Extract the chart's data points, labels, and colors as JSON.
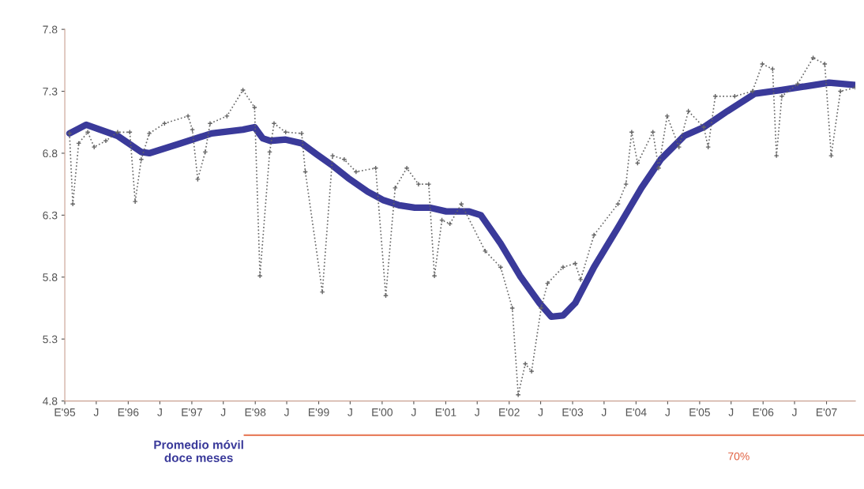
{
  "chart_data": {
    "type": "line",
    "xlim": [
      "1995-01-01",
      "2007-06-16"
    ],
    "ylim": [
      4.8,
      7.8
    ],
    "yticks": [
      4.8,
      5.3,
      5.8,
      6.3,
      6.8,
      7.3,
      7.8
    ],
    "xticks": [
      {
        "value": "1995-01",
        "label": "E'95"
      },
      {
        "value": "1995-07",
        "label": "J"
      },
      {
        "value": "1996-01",
        "label": "E'96"
      },
      {
        "value": "1996-07",
        "label": "J"
      },
      {
        "value": "1997-01",
        "label": "E'97"
      },
      {
        "value": "1997-07",
        "label": "J"
      },
      {
        "value": "1998-01",
        "label": "E'98"
      },
      {
        "value": "1998-07",
        "label": "J"
      },
      {
        "value": "1999-01",
        "label": "E'99"
      },
      {
        "value": "1999-07",
        "label": "J"
      },
      {
        "value": "2000-01",
        "label": "E'00"
      },
      {
        "value": "2000-07",
        "label": "J"
      },
      {
        "value": "2001-01",
        "label": "E'01"
      },
      {
        "value": "2001-07",
        "label": "J"
      },
      {
        "value": "2002-01",
        "label": "E'02"
      },
      {
        "value": "2002-07",
        "label": "J"
      },
      {
        "value": "2003-01",
        "label": "E'03"
      },
      {
        "value": "2003-07",
        "label": "J"
      },
      {
        "value": "2004-01",
        "label": "E'04"
      },
      {
        "value": "2004-07",
        "label": "J"
      },
      {
        "value": "2005-01",
        "label": "E'05"
      },
      {
        "value": "2005-07",
        "label": "J"
      },
      {
        "value": "2006-01",
        "label": "E'06"
      },
      {
        "value": "2006-07",
        "label": "J"
      },
      {
        "value": "2007-01",
        "label": "E'07"
      }
    ],
    "grid": false,
    "legend": false,
    "annotations": [
      "70%"
    ],
    "series": [
      {
        "color": "#666666",
        "line_style": "dotted",
        "marker": "cross",
        "x": [
          "1995-01-28",
          "1995-02-16",
          "1995-03-22",
          "1995-05-13",
          "1995-06-19",
          "1995-08-25",
          "1995-11-01",
          "1996-01-10",
          "1996-02-10",
          "1996-03-16",
          "1996-05-01",
          "1996-07-28",
          "1996-12-10",
          "1997-01-04",
          "1997-02-04",
          "1997-03-19",
          "1997-04-16",
          "1997-07-22",
          "1997-10-22",
          "1997-12-28",
          "1998-01-28",
          "1998-03-25",
          "1998-04-19",
          "1998-06-25",
          "1998-09-25",
          "1998-10-16",
          "1999-01-22",
          "1999-03-22",
          "1999-05-28",
          "1999-08-04",
          "1999-11-25",
          "2000-01-22",
          "2000-03-16",
          "2000-05-22",
          "2000-07-28",
          "2000-09-25",
          "2000-10-28",
          "2000-12-10",
          "2001-01-25",
          "2001-04-01",
          "2001-08-16",
          "2001-11-13",
          "2002-01-19",
          "2002-02-22",
          "2002-04-04",
          "2002-05-10",
          "2002-07-04",
          "2002-08-10",
          "2002-11-07",
          "2003-01-16",
          "2003-02-16",
          "2003-05-04",
          "2003-09-19",
          "2003-11-04",
          "2003-12-07",
          "2004-01-10",
          "2004-04-07",
          "2004-05-10",
          "2004-06-28",
          "2004-09-04",
          "2004-10-28",
          "2005-01-25",
          "2005-02-19",
          "2005-04-01",
          "2005-07-22",
          "2005-11-01",
          "2005-12-28",
          "2006-02-25",
          "2006-03-19",
          "2006-04-19",
          "2006-07-19",
          "2006-10-16",
          "2006-12-22",
          "2007-01-28",
          "2007-03-22",
          "2007-06-16"
        ],
        "values": [
          6.96,
          6.39,
          6.88,
          6.97,
          6.85,
          6.9,
          6.97,
          6.97,
          6.41,
          6.75,
          6.96,
          7.04,
          7.1,
          6.99,
          6.59,
          6.81,
          7.04,
          7.1,
          7.31,
          7.17,
          5.81,
          6.81,
          7.04,
          6.97,
          6.96,
          6.65,
          5.68,
          6.78,
          6.75,
          6.65,
          6.68,
          5.65,
          6.52,
          6.68,
          6.55,
          6.55,
          5.81,
          6.26,
          6.23,
          6.39,
          6.01,
          5.88,
          5.55,
          4.85,
          5.1,
          5.04,
          5.55,
          5.75,
          5.88,
          5.91,
          5.78,
          6.14,
          6.39,
          6.55,
          6.97,
          6.72,
          6.97,
          6.68,
          7.1,
          6.85,
          7.14,
          7.01,
          6.85,
          7.26,
          7.26,
          7.3,
          7.52,
          7.48,
          6.78,
          7.26,
          7.36,
          7.57,
          7.52,
          6.78,
          7.3,
          7.33
        ]
      },
      {
        "name": "Promedio móvil doce meses",
        "color": "#3a3a9a",
        "line_style": "solid",
        "x": [
          "1995-01-28",
          "1995-05-04",
          "1995-11-01",
          "1996-03-16",
          "1996-05-01",
          "1996-10-28",
          "1997-04-25",
          "1997-10-22",
          "1997-12-28",
          "1998-02-13",
          "1998-03-28",
          "1998-06-25",
          "1998-09-25",
          "1998-12-22",
          "1999-03-22",
          "1999-06-19",
          "1999-10-10",
          "2000-01-10",
          "2000-04-07",
          "2000-07-07",
          "2000-10-04",
          "2001-01-04",
          "2001-05-16",
          "2001-07-22",
          "2001-11-13",
          "2002-03-04",
          "2002-06-25",
          "2002-09-01",
          "2002-11-07",
          "2003-01-16",
          "2003-05-04",
          "2003-09-19",
          "2004-02-01",
          "2004-05-22",
          "2004-10-04",
          "2005-01-25",
          "2005-06-10",
          "2005-11-13",
          "2006-04-19",
          "2006-09-01",
          "2007-01-16",
          "2007-06-16"
        ],
        "values": [
          6.96,
          7.03,
          6.94,
          6.81,
          6.8,
          6.88,
          6.96,
          6.99,
          7.01,
          6.92,
          6.9,
          6.91,
          6.88,
          6.79,
          6.7,
          6.6,
          6.49,
          6.42,
          6.38,
          6.36,
          6.36,
          6.33,
          6.33,
          6.3,
          6.07,
          5.81,
          5.59,
          5.48,
          5.49,
          5.59,
          5.88,
          6.2,
          6.52,
          6.75,
          6.94,
          7.01,
          7.14,
          7.28,
          7.31,
          7.34,
          7.37,
          7.35
        ]
      }
    ]
  }
}
